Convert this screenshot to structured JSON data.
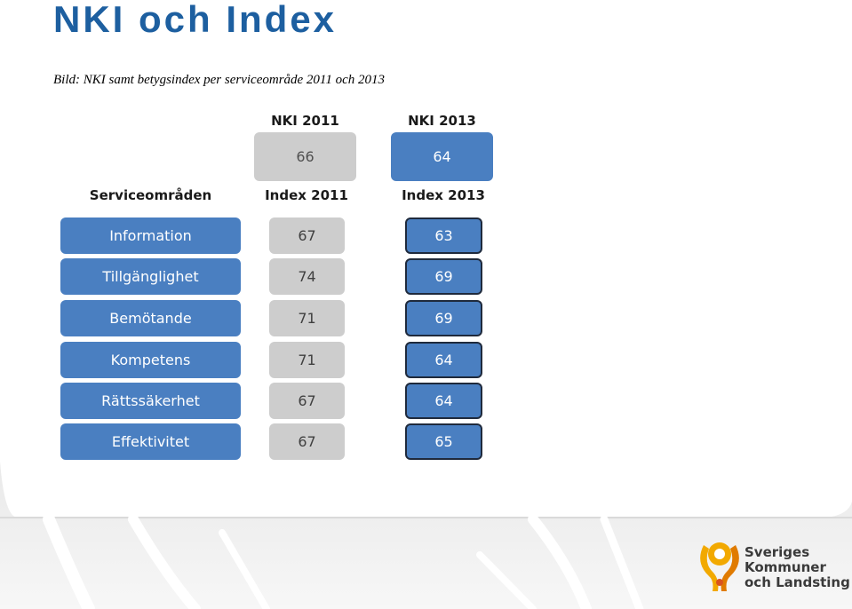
{
  "title": "NKI och Index",
  "caption": "Bild: NKI samt betygsindex per serviceområde 2011 och 2013",
  "headers": {
    "nki_2011": "NKI 2011",
    "nki_2013": "NKI 2013",
    "categories": "Serviceområden",
    "index_2011": "Index 2011",
    "index_2013": "Index 2013"
  },
  "nki": {
    "y2011": "66",
    "y2013": "64"
  },
  "rows": [
    {
      "label": "Information",
      "index_2011": "67",
      "index_2013": "63"
    },
    {
      "label": "Tillgänglighet",
      "index_2011": "74",
      "index_2013": "69"
    },
    {
      "label": "Bemötande",
      "index_2011": "71",
      "index_2013": "69"
    },
    {
      "label": "Kompetens",
      "index_2011": "71",
      "index_2013": "64"
    },
    {
      "label": "Rättssäkerhet",
      "index_2011": "67",
      "index_2013": "64"
    },
    {
      "label": "Effektivitet",
      "index_2011": "67",
      "index_2013": "65"
    }
  ],
  "logo": {
    "line1": "Sveriges",
    "line2": "Kommuner",
    "line3": "och Landsting"
  },
  "colors": {
    "title": "#1d5fa0",
    "blue_box": "#4a7fc1",
    "grey_box": "#cdcdcd",
    "logo_orange": "#f2a900"
  }
}
